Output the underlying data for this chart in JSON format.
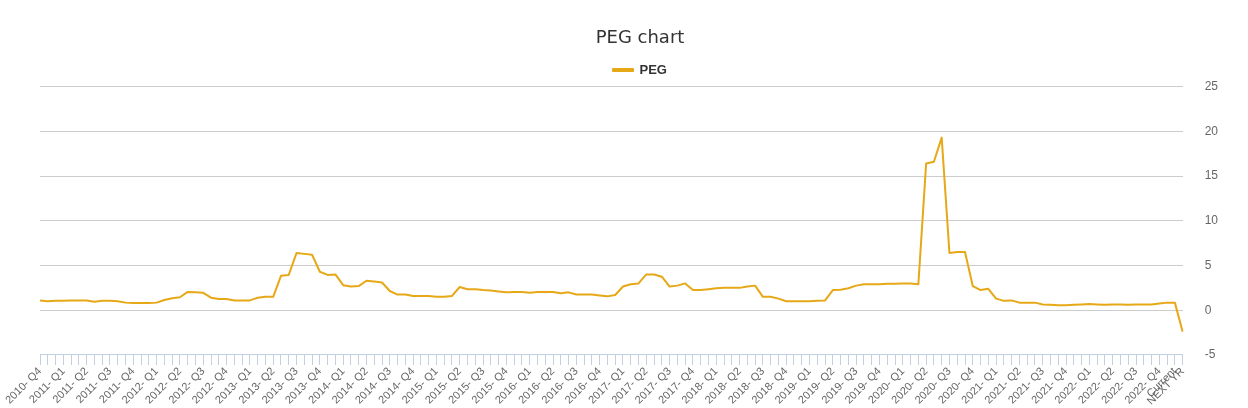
{
  "chart_data": {
    "type": "line",
    "title": "PEG chart",
    "categories": [
      "2010- Q4",
      null,
      null,
      "2011- Q1",
      null,
      null,
      "2011- Q2",
      null,
      null,
      "2011- Q3",
      null,
      null,
      "2011- Q4",
      null,
      null,
      "2012- Q1",
      null,
      null,
      "2012- Q2",
      null,
      null,
      "2012- Q3",
      null,
      null,
      "2012- Q4",
      null,
      null,
      "2013- Q1",
      null,
      null,
      "2013- Q2",
      null,
      null,
      "2013- Q3",
      null,
      null,
      "2013- Q4",
      null,
      null,
      "2014- Q1",
      null,
      null,
      "2014- Q2",
      null,
      null,
      "2014- Q3",
      null,
      null,
      "2014- Q4",
      null,
      null,
      "2015- Q1",
      null,
      null,
      "2015- Q2",
      null,
      null,
      "2015- Q3",
      null,
      null,
      "2015- Q4",
      null,
      null,
      "2016- Q1",
      null,
      null,
      "2016- Q2",
      null,
      null,
      "2016- Q3",
      null,
      null,
      "2016- Q4",
      null,
      null,
      "2017- Q1",
      null,
      null,
      "2017- Q2",
      null,
      null,
      "2017- Q3",
      null,
      null,
      "2017- Q4",
      null,
      null,
      "2018- Q1",
      null,
      null,
      "2018- Q2",
      null,
      null,
      "2018- Q3",
      null,
      null,
      "2018- Q4",
      null,
      null,
      "2019- Q1",
      null,
      null,
      "2019- Q2",
      null,
      null,
      "2019- Q3",
      null,
      null,
      "2019- Q4",
      null,
      null,
      "2020- Q1",
      null,
      null,
      "2020- Q2",
      null,
      null,
      "2020- Q3",
      null,
      null,
      "2020- Q4",
      null,
      null,
      "2021- Q1",
      null,
      null,
      "2021- Q2",
      null,
      null,
      "2021- Q3",
      null,
      null,
      "2021- Q4",
      null,
      null,
      "2022- Q1",
      null,
      null,
      "2022- Q2",
      null,
      null,
      "2022- Q3",
      null,
      null,
      "2022- Q4",
      null,
      "Current",
      "NEXT YR"
    ],
    "series": [
      {
        "name": "PEG",
        "color": "#e6a817",
        "values": [
          1.1,
          1.0,
          1.05,
          1.05,
          1.1,
          1.1,
          1.1,
          0.95,
          1.05,
          1.05,
          1.0,
          0.85,
          0.8,
          0.8,
          0.8,
          0.85,
          1.15,
          1.35,
          1.45,
          2.05,
          2.0,
          1.95,
          1.4,
          1.25,
          1.25,
          1.1,
          1.1,
          1.1,
          1.4,
          1.5,
          1.5,
          3.85,
          3.95,
          6.4,
          6.3,
          6.2,
          4.3,
          3.95,
          4.0,
          2.8,
          2.65,
          2.7,
          3.3,
          3.2,
          3.1,
          2.15,
          1.75,
          1.75,
          1.6,
          1.6,
          1.6,
          1.5,
          1.5,
          1.6,
          2.6,
          2.35,
          2.35,
          2.25,
          2.2,
          2.1,
          2.0,
          2.05,
          2.05,
          1.95,
          2.05,
          2.05,
          2.05,
          1.9,
          2.0,
          1.75,
          1.75,
          1.75,
          1.65,
          1.55,
          1.7,
          2.65,
          2.9,
          3.0,
          4.0,
          4.0,
          3.75,
          2.65,
          2.75,
          3.0,
          2.25,
          2.25,
          2.35,
          2.45,
          2.5,
          2.5,
          2.5,
          2.65,
          2.75,
          1.5,
          1.5,
          1.3,
          1.0,
          1.0,
          1.0,
          1.0,
          1.05,
          1.1,
          2.25,
          2.3,
          2.45,
          2.75,
          2.9,
          2.9,
          2.9,
          2.95,
          2.95,
          3.0,
          3.0,
          2.9,
          16.4,
          16.6,
          19.3,
          6.4,
          6.5,
          6.5,
          2.7,
          2.25,
          2.4,
          1.3,
          1.05,
          1.1,
          0.85,
          0.85,
          0.85,
          0.65,
          0.6,
          0.55,
          0.55,
          0.6,
          0.65,
          0.7,
          0.65,
          0.6,
          0.65,
          0.65,
          0.6,
          0.65,
          0.65,
          0.65,
          0.75,
          0.85,
          0.85,
          -2.4
        ]
      }
    ],
    "ylim": [
      -5,
      25
    ],
    "yticks": [
      -5,
      0,
      5,
      10,
      15,
      20,
      25
    ],
    "grid": "y",
    "legend": "top",
    "marker": "none",
    "line_style": "solid"
  }
}
